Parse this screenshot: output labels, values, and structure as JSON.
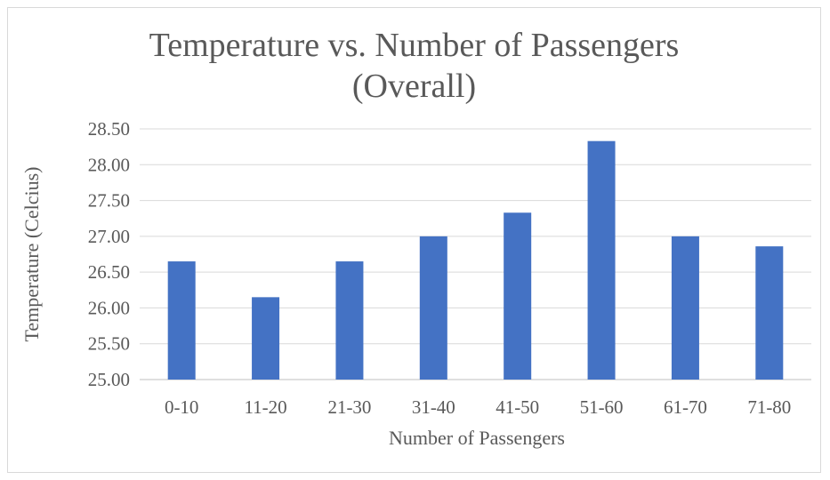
{
  "chart_data": {
    "type": "bar",
    "title": "Temperature vs. Number of Passengers",
    "subtitle": "(Overall)",
    "xlabel": "Number of Passengers",
    "ylabel": "Temperature (Celcius)",
    "categories": [
      "0-10",
      "11-20",
      "21-30",
      "31-40",
      "41-50",
      "51-60",
      "61-70",
      "71-80"
    ],
    "values": [
      26.65,
      26.15,
      26.65,
      27.0,
      27.33,
      28.33,
      27.0,
      26.86
    ],
    "ylim": [
      25.0,
      28.5
    ],
    "yticks": [
      "25.00",
      "25.50",
      "26.00",
      "26.50",
      "27.00",
      "27.50",
      "28.00",
      "28.50"
    ],
    "grid": true,
    "legend": "none",
    "bar_color": "#4472c4",
    "grid_color": "#d9d9d9",
    "text_color": "#595959"
  }
}
